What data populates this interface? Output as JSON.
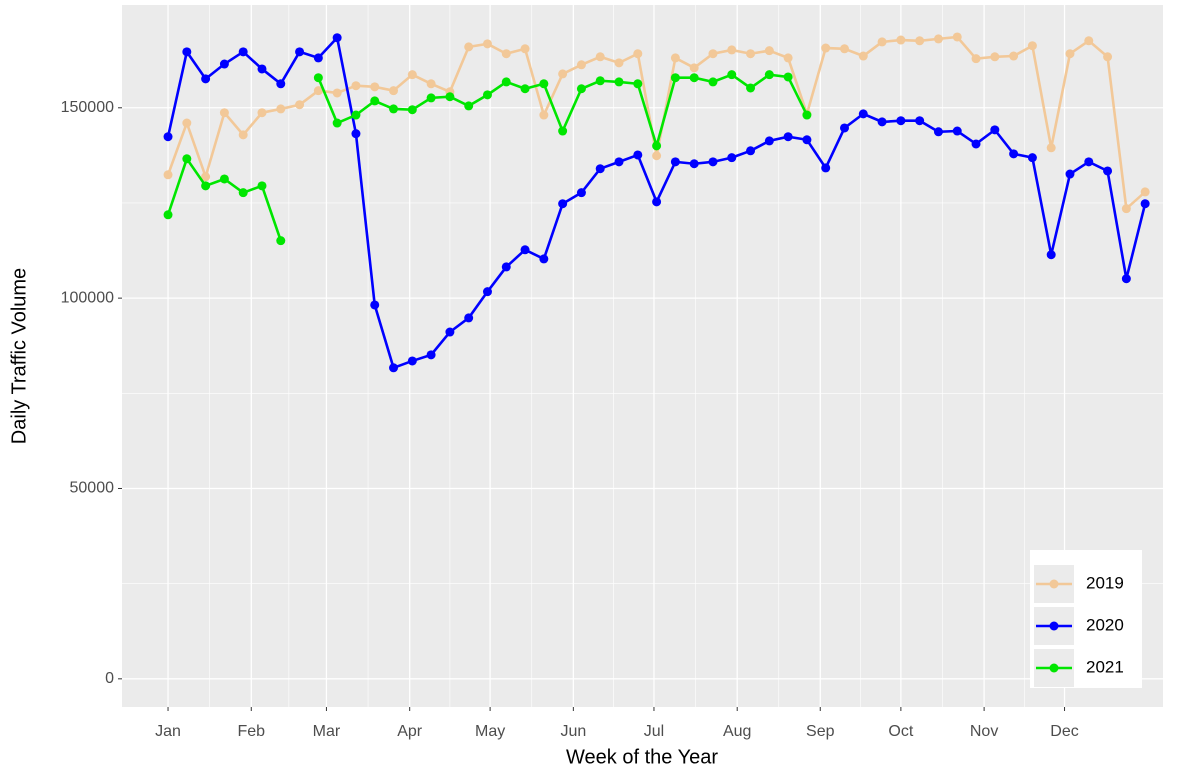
{
  "chart_data": {
    "type": "line",
    "x_label": "Week of the Year",
    "y_label": "Daily Traffic Volume",
    "x": [
      1,
      2,
      3,
      4,
      5,
      6,
      7,
      8,
      9,
      10,
      11,
      12,
      13,
      14,
      15,
      16,
      17,
      18,
      19,
      20,
      21,
      22,
      23,
      24,
      25,
      26,
      27,
      28,
      29,
      30,
      31,
      32,
      33,
      34,
      35,
      36,
      37,
      38,
      39,
      40,
      41,
      42,
      43,
      44,
      45,
      46,
      47,
      48,
      49,
      50,
      51,
      52,
      53
    ],
    "xlim": [
      -1.45,
      53.95
    ],
    "xticks": [
      {
        "value": 1,
        "label": "Jan"
      },
      {
        "value": 5.43,
        "label": "Feb"
      },
      {
        "value": 9.43,
        "label": "Mar"
      },
      {
        "value": 13.86,
        "label": "Apr"
      },
      {
        "value": 18.14,
        "label": "May"
      },
      {
        "value": 22.57,
        "label": "Jun"
      },
      {
        "value": 26.86,
        "label": "Jul"
      },
      {
        "value": 31.29,
        "label": "Aug"
      },
      {
        "value": 35.71,
        "label": "Sep"
      },
      {
        "value": 40,
        "label": "Oct"
      },
      {
        "value": 44.43,
        "label": "Nov"
      },
      {
        "value": 48.71,
        "label": "Dec"
      }
    ],
    "ylim": [
      -7400,
      177000
    ],
    "yticks": [
      0,
      50000,
      100000,
      150000
    ],
    "grid": true,
    "legend": "bottom-right",
    "series": [
      {
        "name": "2019",
        "color": "#f2c898",
        "values": [
          132400,
          146000,
          131900,
          148700,
          142900,
          148700,
          149700,
          150800,
          154500,
          153900,
          155800,
          155500,
          154500,
          158700,
          156300,
          154200,
          166000,
          166800,
          164200,
          165500,
          148100,
          158900,
          161300,
          163400,
          161800,
          164200,
          137400,
          163100,
          160500,
          164200,
          165200,
          164200,
          165000,
          163100,
          148400,
          165700,
          165500,
          163600,
          167300,
          167800,
          167600,
          168100,
          168600,
          162900,
          163400,
          163600,
          166300,
          139500,
          164200,
          167600,
          163400,
          123500,
          127900
        ]
      },
      {
        "name": "2020",
        "color": "#0000ff",
        "values": [
          142400,
          164700,
          157600,
          161500,
          164700,
          160200,
          156300,
          164700,
          163100,
          168400,
          143200,
          98200,
          81700,
          83500,
          85100,
          91100,
          94800,
          101700,
          108200,
          112700,
          110300,
          124800,
          127700,
          134000,
          135800,
          137600,
          125300,
          135800,
          135300,
          135800,
          136900,
          138700,
          141300,
          142400,
          141600,
          134200,
          144700,
          148400,
          146300,
          146600,
          146600,
          143700,
          143900,
          140500,
          144200,
          137900,
          136900,
          111400,
          132600,
          135800,
          133400,
          105100,
          124800
        ]
      },
      {
        "name": "2021",
        "color": "#00e600",
        "values": [
          121900,
          136600,
          129500,
          131300,
          127700,
          129500,
          115100,
          null,
          157900,
          146000,
          148100,
          151800,
          149700,
          149500,
          152600,
          152900,
          150500,
          153400,
          156800,
          155000,
          156300,
          143900,
          155000,
          157100,
          156800,
          156300,
          140000,
          157900,
          157900,
          156800,
          158700,
          155200,
          158700,
          158100,
          148100,
          null,
          null,
          null,
          null,
          null,
          null,
          null,
          null,
          null,
          null,
          null,
          null,
          null,
          null,
          null,
          null,
          null,
          null
        ]
      }
    ]
  }
}
